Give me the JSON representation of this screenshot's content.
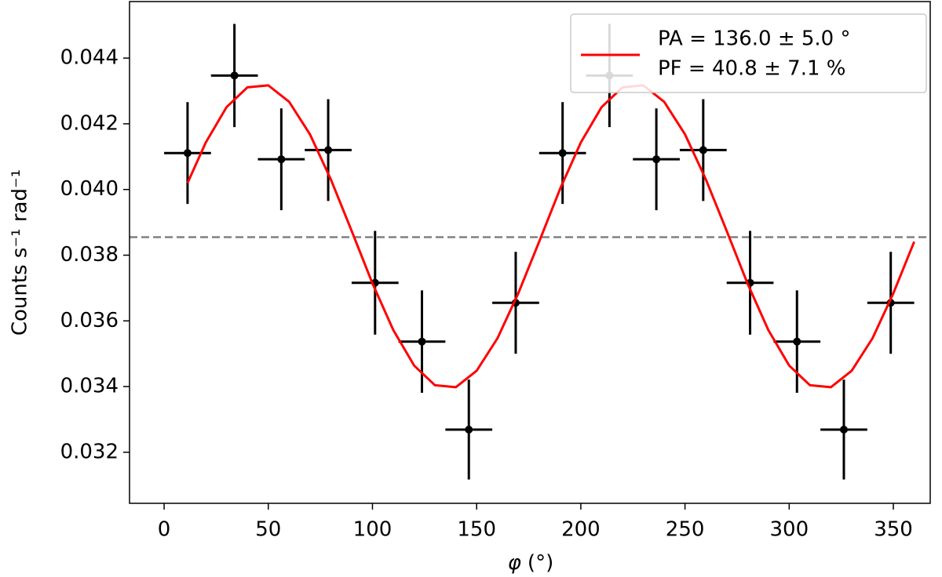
{
  "chart_data": {
    "type": "scatter",
    "xlabel": "(°)",
    "xlabel_symbol": "φ",
    "ylabel": "Counts s⁻¹ rad⁻¹",
    "xlim": [
      -16.6,
      367.7
    ],
    "ylim": [
      0.030446,
      0.045721
    ],
    "xticks": [
      0,
      50,
      100,
      150,
      200,
      250,
      300,
      350
    ],
    "yticks": [
      0.032,
      0.034,
      0.036,
      0.038,
      {
        "value": 0.04,
        "label": "0.040"
      },
      0.042,
      0.044
    ],
    "series": [
      {
        "color": "#000000",
        "x": [
          11.25,
          33.75,
          56.25,
          78.75,
          101.25,
          123.75,
          146.25,
          168.75,
          191.25,
          213.75,
          236.25,
          258.75,
          281.25,
          303.75,
          326.25,
          348.75
        ],
        "xerr": [
          11.25,
          11.25,
          11.25,
          11.25,
          11.25,
          11.25,
          11.25,
          11.25,
          11.25,
          11.25,
          11.25,
          11.25,
          11.25,
          11.25,
          11.25,
          11.25
        ],
        "values": [
          0.04111,
          0.04347,
          0.04092,
          0.0412,
          0.03716,
          0.03537,
          0.03269,
          0.03655,
          0.04111,
          0.04347,
          0.04092,
          0.0412,
          0.03716,
          0.03537,
          0.03269,
          0.03655
        ],
        "errors": [
          0.00155,
          0.00157,
          0.00155,
          0.00155,
          0.00158,
          0.00156,
          0.00152,
          0.00155,
          0.00155,
          0.00157,
          0.00155,
          0.00155,
          0.00158,
          0.00156,
          0.00152,
          0.00155
        ]
      },
      {
        "type": "line",
        "color": "#ff0000",
        "legend_text": [
          "PA = 136.0 ± 5.0 °",
          "PF = 40.8 ± 7.1 %"
        ],
        "x": [
          11.25,
          20,
          30,
          40,
          50,
          60,
          70,
          80,
          90,
          100,
          110,
          120,
          130,
          140,
          150,
          160,
          170,
          180,
          190,
          200,
          210,
          220,
          230,
          240,
          250,
          260,
          270,
          280,
          290,
          300,
          310,
          320,
          330,
          340,
          350,
          360
        ],
        "values": [
          0.0402,
          0.04143,
          0.04251,
          0.04311,
          0.04317,
          0.04267,
          0.04168,
          0.04031,
          0.03874,
          0.03714,
          0.03572,
          0.03464,
          0.03404,
          0.03398,
          0.03448,
          0.03547,
          0.03684,
          0.03841,
          0.04001,
          0.04143,
          0.04251,
          0.04311,
          0.04317,
          0.04267,
          0.04168,
          0.04031,
          0.03874,
          0.03714,
          0.03572,
          0.03464,
          0.03404,
          0.03398,
          0.03448,
          0.03547,
          0.03684,
          0.03841
        ]
      }
    ],
    "hline": {
      "value": 0.03855,
      "color": "#808080"
    },
    "legend": "upper right"
  }
}
